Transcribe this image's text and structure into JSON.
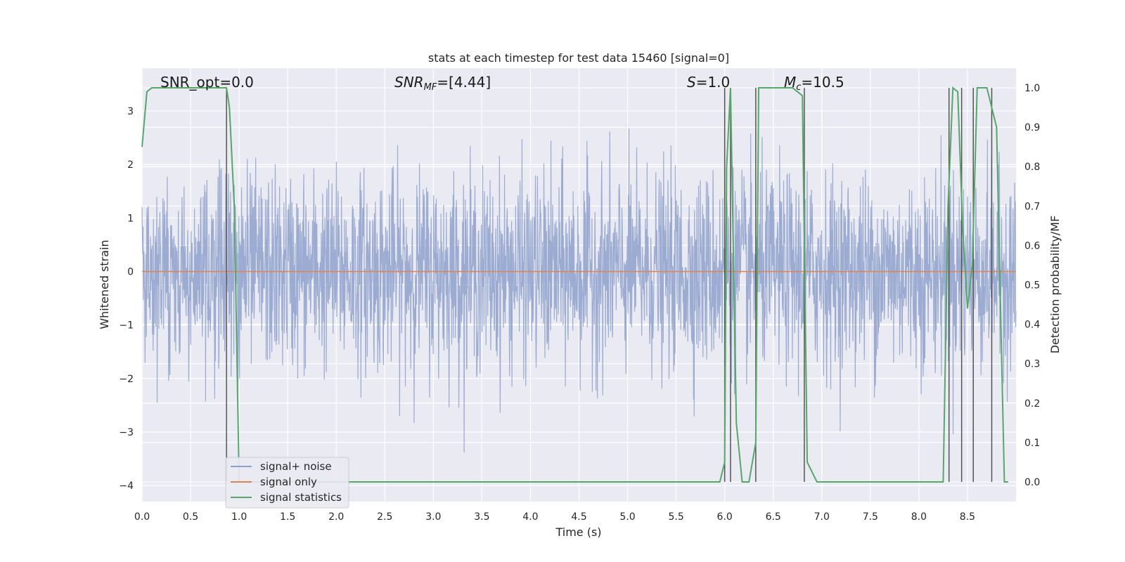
{
  "chart_data": {
    "type": "line",
    "title": "stats at each timestep for test data 15460 [signal=0]",
    "xlabel": "Time (s)",
    "ylabel_left": "Whitened strain",
    "ylabel_right": "Detection probability/MF",
    "xlim": [
      0.0,
      9.0
    ],
    "ylim_left": [
      -4.3,
      3.8
    ],
    "ylim_right": [
      -0.05,
      1.05
    ],
    "xticks": [
      0.0,
      0.5,
      1.0,
      1.5,
      2.0,
      2.5,
      3.0,
      3.5,
      4.0,
      4.5,
      5.0,
      5.5,
      6.0,
      6.5,
      7.0,
      7.5,
      8.0,
      8.5
    ],
    "xtick_labels": [
      "0.0",
      "0.5",
      "1.0",
      "1.5",
      "2.0",
      "2.5",
      "3.0",
      "3.5",
      "4.0",
      "4.5",
      "5.0",
      "5.5",
      "6.0",
      "6.5",
      "7.0",
      "7.5",
      "8.0",
      "8.5"
    ],
    "yticks_left": [
      3,
      2,
      1,
      0,
      -1,
      -2,
      -3,
      -4
    ],
    "ytick_labels_left": [
      "3",
      "2",
      "1",
      "0",
      "−1",
      "−2",
      "−3",
      "−4"
    ],
    "yticks_right": [
      1.0,
      0.9,
      0.8,
      0.7,
      0.6,
      0.5,
      0.4,
      0.3,
      0.2,
      0.1,
      0.0
    ],
    "ytick_labels_right": [
      "1.0",
      "0.9",
      "0.8",
      "0.7",
      "0.6",
      "0.5",
      "0.4",
      "0.3",
      "0.2",
      "0.1",
      "0.0"
    ],
    "grid": true,
    "background": "#eaeaf2",
    "legend_position": "lower-left",
    "annotations": {
      "snr_opt": "SNR_opt=0.0",
      "snr_mf_prefix": "SNR",
      "snr_mf_sub": "MF",
      "snr_mf_suffix": "=[4.44]",
      "s_label": "S",
      "s_suffix": "=1.0",
      "mc_label": "M",
      "mc_sub": "c",
      "mc_suffix": "=10.5"
    },
    "series": [
      {
        "name": "signal+ noise",
        "color": "#8da0cb",
        "kind": "noise",
        "description_values": "white Gaussian noise, std ≈ 0.9, range ≈ [-4.0, 3.4]",
        "amplitude_std": 0.9,
        "x_range": [
          0.0,
          9.0
        ]
      },
      {
        "name": "signal only",
        "color": "#dd8452",
        "x": [
          0.0,
          9.0
        ],
        "y": [
          0.0,
          0.0
        ]
      },
      {
        "name": "signal statistics",
        "color": "#55a868",
        "axis": "right",
        "x": [
          0.0,
          0.05,
          0.1,
          0.87,
          0.9,
          0.95,
          1.0,
          5.95,
          6.0,
          6.02,
          6.06,
          6.12,
          6.18,
          6.25,
          6.32,
          6.35,
          6.7,
          6.8,
          6.85,
          6.95,
          8.25,
          8.3,
          8.35,
          8.4,
          8.45,
          8.5,
          8.55,
          8.6,
          8.7,
          8.8,
          8.88,
          8.92
        ],
        "y": [
          0.85,
          0.99,
          1.0,
          1.0,
          0.95,
          0.7,
          0.0,
          0.0,
          0.05,
          0.8,
          1.0,
          0.15,
          0.0,
          0.0,
          0.1,
          1.0,
          1.0,
          0.98,
          0.05,
          0.0,
          0.0,
          0.7,
          1.0,
          0.99,
          0.65,
          0.44,
          0.55,
          1.0,
          1.0,
          0.9,
          0.0,
          0.0
        ]
      }
    ],
    "vertical_lines_x": [
      0.87,
      6.0,
      6.06,
      6.32,
      6.82,
      8.31,
      8.44,
      8.56,
      8.75
    ],
    "vertical_line_color": "#555555"
  }
}
